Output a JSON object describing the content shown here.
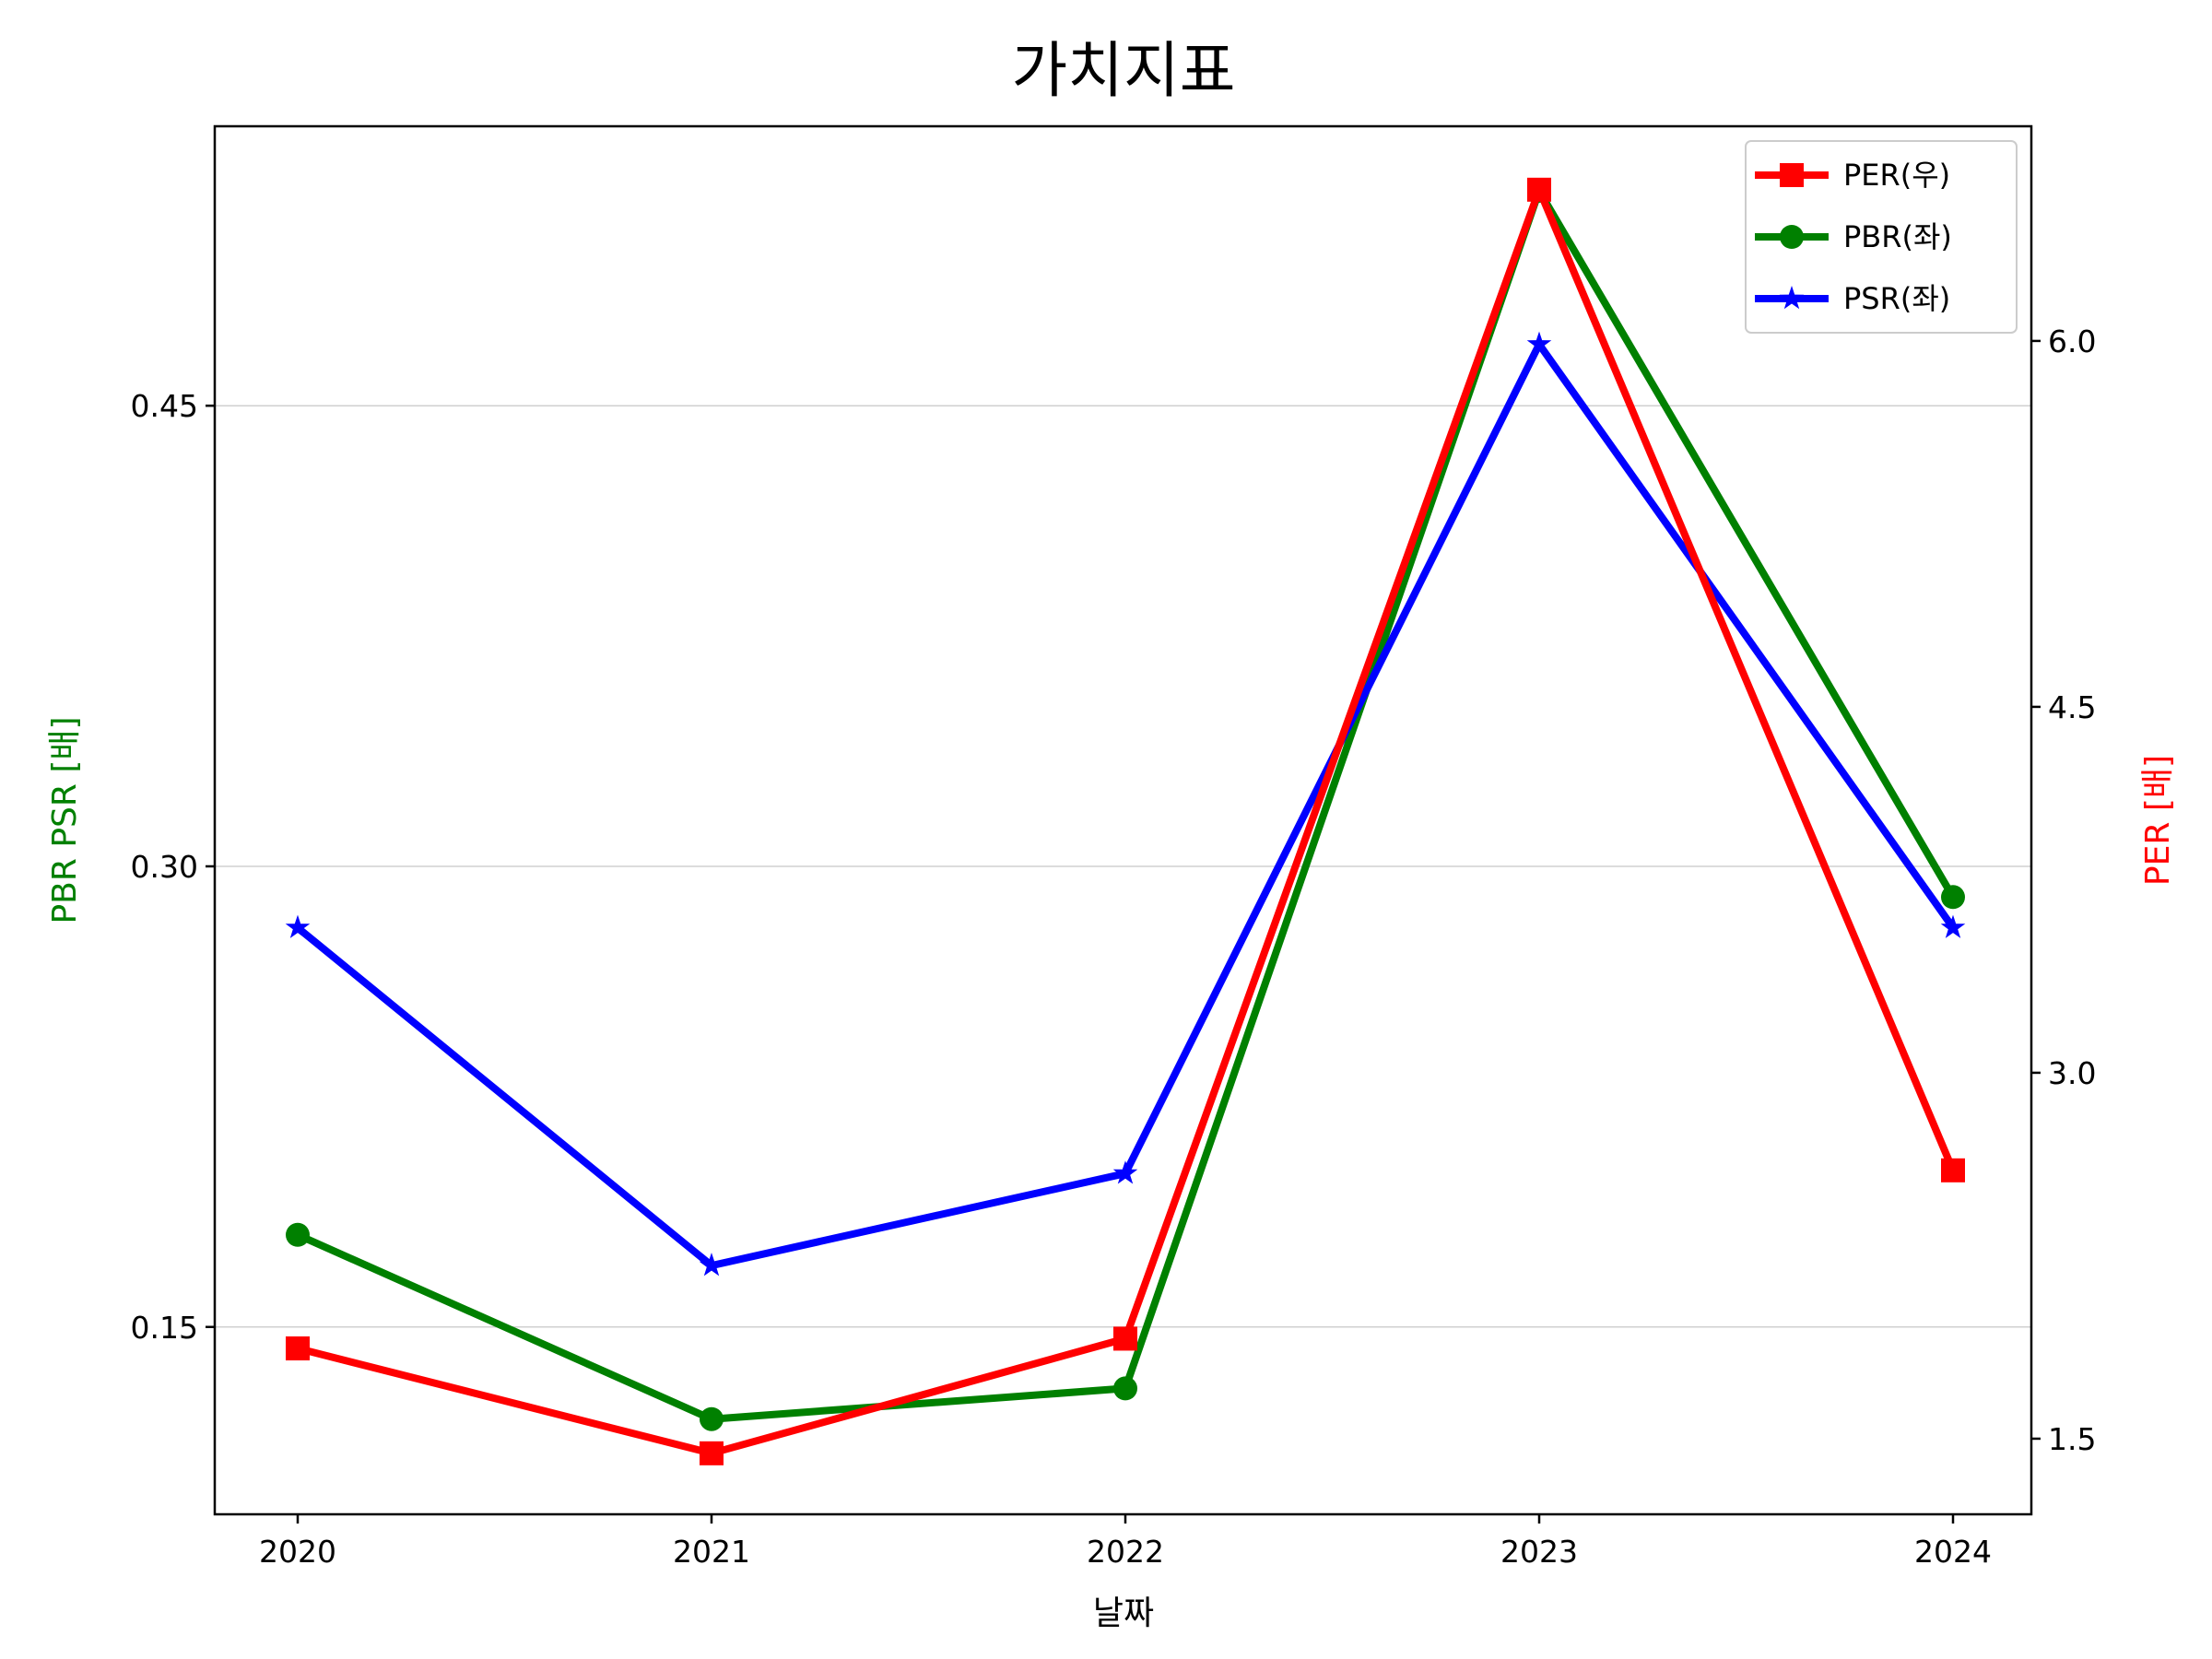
{
  "chart_data": {
    "type": "line",
    "title": "가치지표",
    "xlabel": "날짜",
    "ylabel_left": "PBR PSR [배]",
    "ylabel_right": "PER [배]",
    "categories": [
      "2020",
      "2021",
      "2022",
      "2023",
      "2024"
    ],
    "left_axis": {
      "ylim": [
        0.089,
        0.541
      ],
      "ticks": [
        0.15,
        0.3,
        0.45
      ],
      "tick_labels": [
        "0.15",
        "0.30",
        "0.45"
      ]
    },
    "right_axis": {
      "ylim": [
        1.19,
        6.88
      ],
      "ticks": [
        1.5,
        3.0,
        4.5,
        6.0
      ],
      "tick_labels": [
        "1.5",
        "3.0",
        "4.5",
        "6.0"
      ]
    },
    "grid": "horizontal (left axis)",
    "legend_position": "top-right",
    "series": [
      {
        "name": "PER(우)",
        "axis": "right",
        "color": "#ff0000",
        "marker": "square",
        "values": [
          1.87,
          1.44,
          1.91,
          6.62,
          2.6
        ]
      },
      {
        "name": "PBR(좌)",
        "axis": "left",
        "color": "#008000",
        "marker": "circle",
        "values": [
          0.18,
          0.12,
          0.13,
          0.52,
          0.29
        ]
      },
      {
        "name": "PSR(좌)",
        "axis": "left",
        "color": "#0000ff",
        "marker": "star",
        "values": [
          0.28,
          0.17,
          0.2,
          0.47,
          0.28
        ]
      }
    ]
  }
}
